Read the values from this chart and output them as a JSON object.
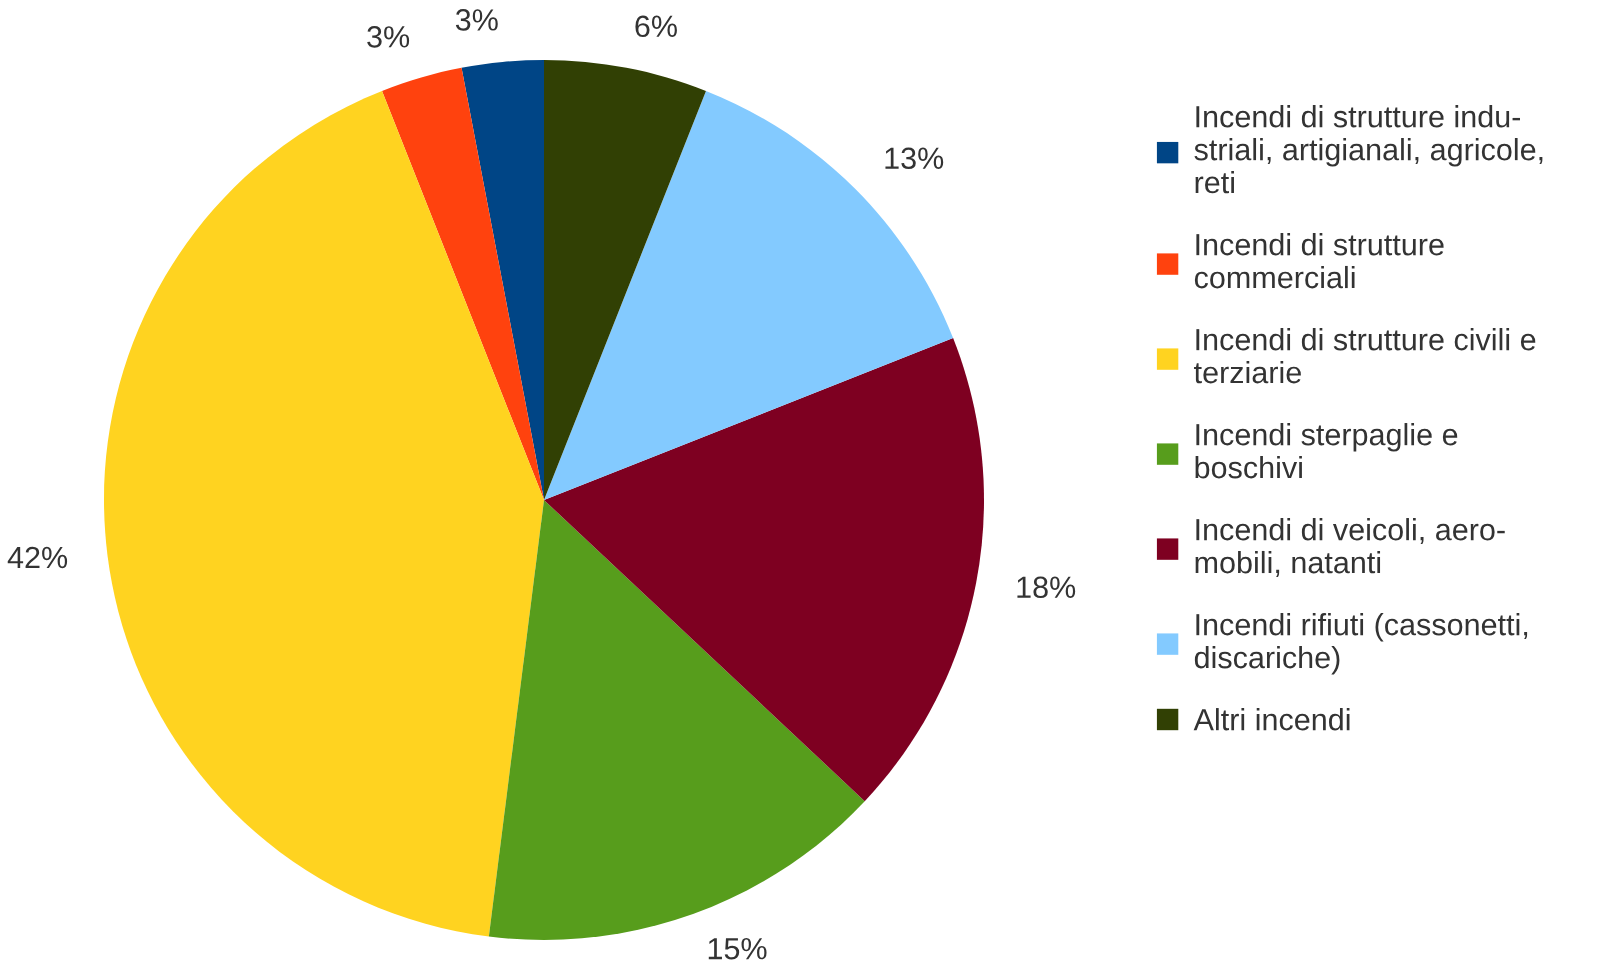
{
  "chart_data": {
    "type": "pie",
    "categories": [
      "Incendi di strutture indu-\nstriali, artigianali, agricole,\nreti",
      "Incendi di strutture\ncommerciali",
      "Incendi di strutture civili e\nterziarie",
      "Incendi sterpaglie e\nboschivi",
      "Incendi di veicoli, aero-\nmobili, natanti",
      "Incendi rifiuti (cassonetti,\ndiscariche)",
      "Altri incendi"
    ],
    "values": [
      3,
      3,
      42,
      15,
      18,
      13,
      6
    ],
    "colors": [
      "#004586",
      "#ff420e",
      "#ffd320",
      "#579d1c",
      "#7e0021",
      "#83caff",
      "#314004"
    ],
    "value_labels": [
      "3%",
      "3%",
      "42%",
      "15%",
      "18%",
      "13%",
      "6%"
    ],
    "legend": "right"
  }
}
